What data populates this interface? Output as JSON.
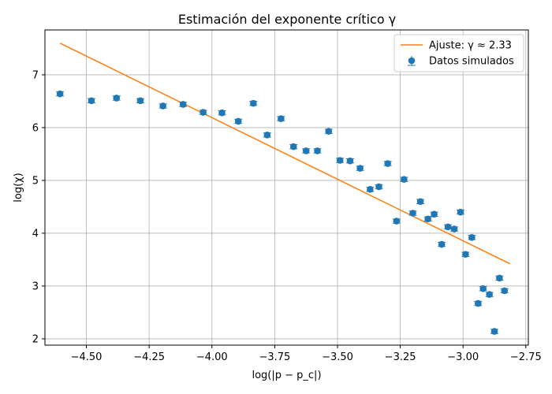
{
  "chart_data": {
    "type": "scatter",
    "title": "Estimación del exponente crítico γ",
    "xlabel": "log(|p − p_c|)",
    "ylabel": "log(χ)",
    "xlim": [
      -4.665,
      -2.74
    ],
    "ylim": [
      1.88,
      7.85
    ],
    "xticks": [
      -4.5,
      -4.25,
      -4.0,
      -3.75,
      -3.5,
      -3.25,
      -3.0,
      -2.75
    ],
    "xtick_labels": [
      "−4.50",
      "−4.25",
      "−4.00",
      "−3.75",
      "−3.50",
      "−3.25",
      "−3.00",
      "−2.75"
    ],
    "yticks": [
      2,
      3,
      4,
      5,
      6,
      7
    ],
    "ytick_labels": [
      "2",
      "3",
      "4",
      "5",
      "6",
      "7"
    ],
    "grid": true,
    "legend_position": "top-right",
    "colors": {
      "data": "#1f77b4",
      "fit": "#ff7f0e"
    },
    "series": [
      {
        "name": "Ajuste: γ ≈ 2.33",
        "kind": "line",
        "x": [
          -4.605,
          -2.813
        ],
        "y": [
          7.6,
          3.42
        ]
      },
      {
        "name": "Datos simulados",
        "kind": "errorbar",
        "points": [
          [
            -4.605,
            6.64
          ],
          [
            -4.48,
            6.51
          ],
          [
            -4.38,
            6.56
          ],
          [
            -4.285,
            6.51
          ],
          [
            -4.195,
            6.41
          ],
          [
            -4.115,
            6.44
          ],
          [
            -4.035,
            6.29
          ],
          [
            -3.96,
            6.28
          ],
          [
            -3.895,
            6.12
          ],
          [
            -3.835,
            6.46
          ],
          [
            -3.78,
            5.86
          ],
          [
            -3.725,
            6.17
          ],
          [
            -3.675,
            5.64
          ],
          [
            -3.625,
            5.56
          ],
          [
            -3.58,
            5.56
          ],
          [
            -3.535,
            5.93
          ],
          [
            -3.49,
            5.38
          ],
          [
            -3.45,
            5.37
          ],
          [
            -3.41,
            5.23
          ],
          [
            -3.37,
            4.83
          ],
          [
            -3.335,
            4.88
          ],
          [
            -3.3,
            5.32
          ],
          [
            -3.265,
            4.23
          ],
          [
            -3.235,
            5.02
          ],
          [
            -3.2,
            4.38
          ],
          [
            -3.17,
            4.6
          ],
          [
            -3.14,
            4.27
          ],
          [
            -3.115,
            4.36
          ],
          [
            -3.085,
            3.79
          ],
          [
            -3.06,
            4.12
          ],
          [
            -3.035,
            4.08
          ],
          [
            -3.01,
            4.4
          ],
          [
            -2.99,
            3.6
          ],
          [
            -2.965,
            3.92
          ],
          [
            -2.94,
            2.67
          ],
          [
            -2.92,
            2.95
          ],
          [
            -2.895,
            2.84
          ],
          [
            -2.875,
            2.14
          ],
          [
            -2.855,
            3.15
          ],
          [
            -2.835,
            2.91
          ]
        ],
        "yerr": 0.04
      }
    ]
  }
}
